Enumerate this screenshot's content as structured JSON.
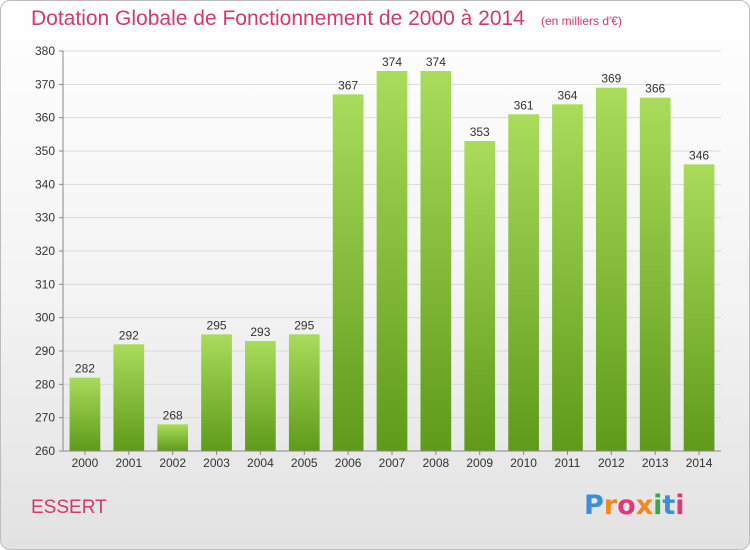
{
  "header": {
    "title": "Dotation Globale de Fonctionnement de 2000 à 2014",
    "unit": "(en milliers d'€)"
  },
  "footer": {
    "commune": "ESSERT",
    "logo_text": "Proxiti",
    "logo_colors": [
      "#3a8fd6",
      "#f08a1c",
      "#e0397a",
      "#f08a1c",
      "#3aa84a",
      "#3a8fd6",
      "#e0397a"
    ]
  },
  "colors": {
    "bar": "#7dbf2c",
    "bar_light": "#a9dc5a",
    "bar_dark": "#5f9a1a",
    "accent": "#d23a6a",
    "grid": "#d9d9d9"
  },
  "chart_data": {
    "type": "bar",
    "title": "Dotation Globale de Fonctionnement de 2000 à 2014",
    "subtitle": "(en milliers d'€)",
    "categories": [
      "2000",
      "2001",
      "2002",
      "2003",
      "2004",
      "2005",
      "2006",
      "2007",
      "2008",
      "2009",
      "2010",
      "2011",
      "2012",
      "2013",
      "2014"
    ],
    "values": [
      282,
      292,
      268,
      295,
      293,
      295,
      367,
      374,
      374,
      353,
      361,
      364,
      369,
      366,
      346
    ],
    "ylim": [
      260,
      380
    ],
    "yticks": [
      260,
      270,
      280,
      290,
      300,
      310,
      320,
      330,
      340,
      350,
      360,
      370,
      380
    ],
    "grid": true,
    "data_labels": true
  }
}
